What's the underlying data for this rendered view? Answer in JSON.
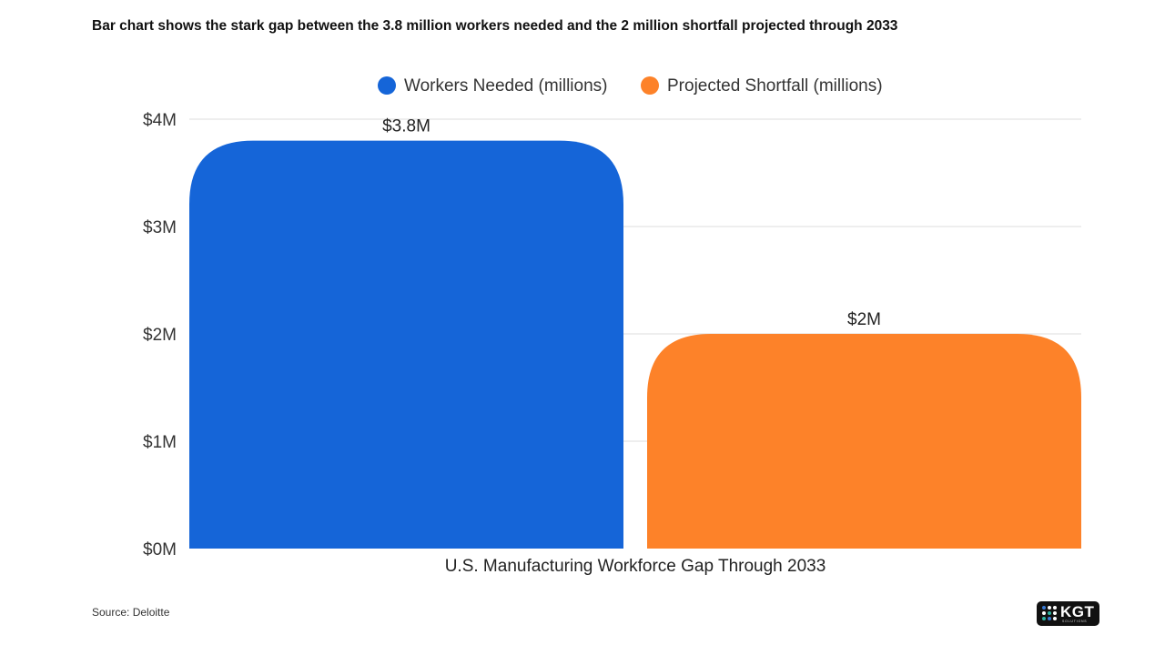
{
  "chart_data": {
    "type": "bar",
    "title": "Bar chart shows the stark gap between the 3.8 million workers needed and the 2 million shortfall projected through 2033",
    "xlabel": "U.S. Manufacturing Workforce Gap Through 2033",
    "ylabel": "",
    "ylim": [
      0,
      4
    ],
    "yticks": [
      0,
      1,
      2,
      3,
      4
    ],
    "ytick_labels": [
      "$0M",
      "$1M",
      "$2M",
      "$3M",
      "$4M"
    ],
    "grid": true,
    "legend_position": "top-center",
    "series": [
      {
        "name": "Workers Needed (millions)",
        "value": 3.8,
        "data_label": "$3.8M",
        "color": "#1565d8"
      },
      {
        "name": "Projected Shortfall (millions)",
        "value": 2,
        "data_label": "$2M",
        "color": "#fd8229"
      }
    ]
  },
  "source": "Source: Deloitte",
  "logo": {
    "text": "KGT",
    "subtext": "SOLUTIONS"
  }
}
